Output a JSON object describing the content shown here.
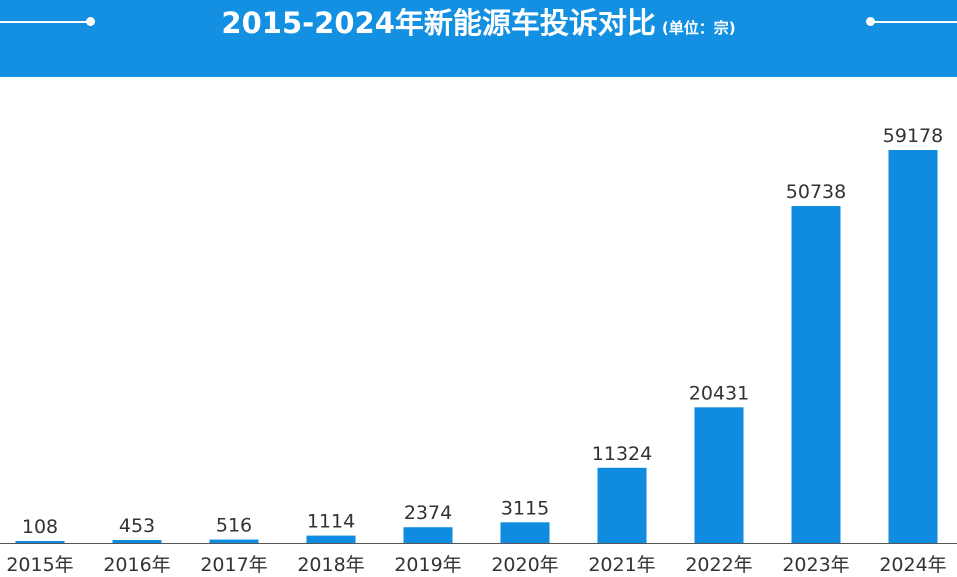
{
  "header": {
    "title": "2015-2024年新能源车投诉对比",
    "subtitle": "(单位：宗)"
  },
  "colors": {
    "banner": "#1390e2",
    "bar": "#0f8be0",
    "axis": "#555555"
  },
  "chart_data": {
    "type": "bar",
    "title": "2015-2024年新能源车投诉对比",
    "subtitle": "(单位：宗)",
    "xlabel": "",
    "ylabel": "",
    "categories": [
      "2015年",
      "2016年",
      "2017年",
      "2018年",
      "2019年",
      "2020年",
      "2021年",
      "2022年",
      "2023年",
      "2024年"
    ],
    "values": [
      108,
      453,
      516,
      1114,
      2374,
      3115,
      11324,
      20431,
      50738,
      59178
    ],
    "ylim": [
      0,
      59178
    ],
    "grid": false,
    "legend": "none",
    "data_labels": true
  }
}
